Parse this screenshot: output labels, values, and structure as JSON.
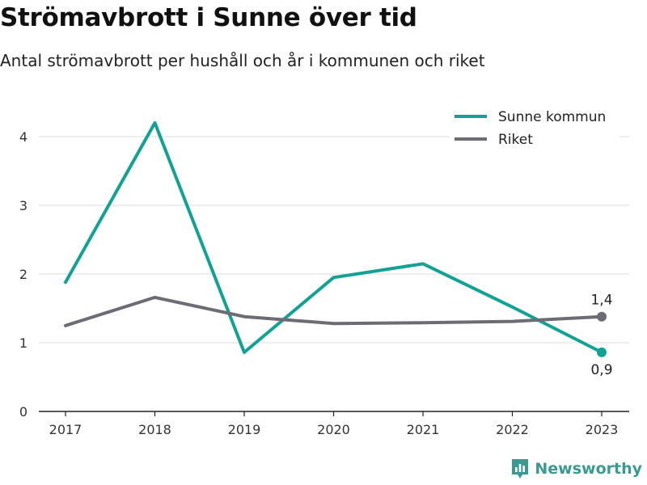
{
  "title": "Strömavbrott i Sunne över tid",
  "subtitle": "Antal strömavbrott per hushåll och år i kommunen och riket",
  "brand": "Newsworthy",
  "colors": {
    "sunne": "#12a294",
    "riket": "#6d6b73",
    "grid": "#dddddd",
    "axis": "#222222",
    "brand": "#3a9a8f"
  },
  "chart_data": {
    "type": "line",
    "x": [
      "2017",
      "2018",
      "2019",
      "2020",
      "2021",
      "2022",
      "2023"
    ],
    "ylim": [
      0,
      4.6
    ],
    "yticks": [
      "0",
      "1",
      "2",
      "3",
      "4"
    ],
    "grid": true,
    "legend": "top-right",
    "series": [
      {
        "name": "Sunne kommun",
        "color": "#12a294",
        "values": [
          1.88,
          4.2,
          0.86,
          1.95,
          2.15,
          1.52,
          0.86
        ],
        "end_label": "0,9"
      },
      {
        "name": "Riket",
        "color": "#6d6b73",
        "values": [
          1.25,
          1.66,
          1.38,
          1.28,
          1.29,
          1.31,
          1.38
        ],
        "end_label": "1,4"
      }
    ]
  }
}
